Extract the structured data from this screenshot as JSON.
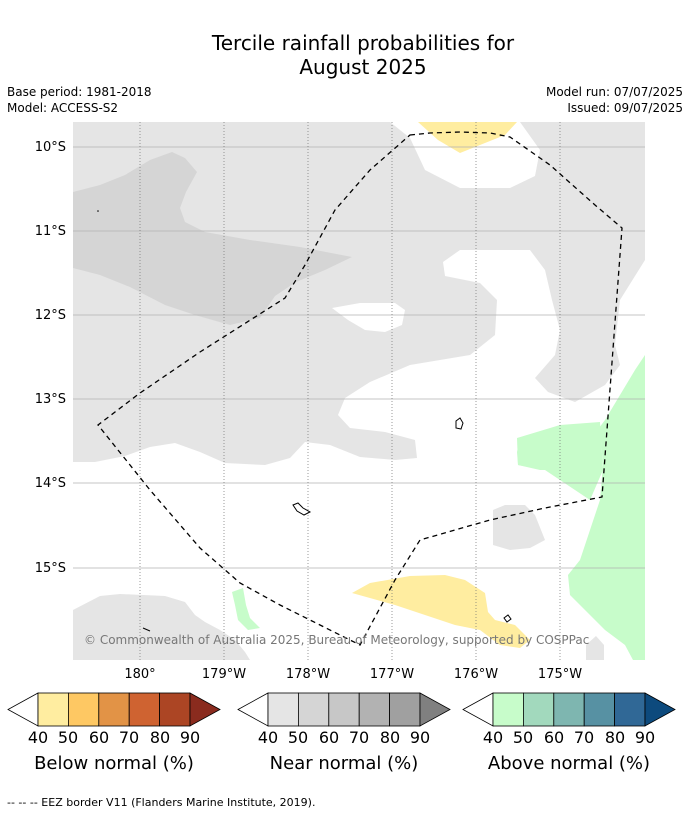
{
  "title_line1": "Tercile rainfall probabilities for",
  "title_line2": "August 2025",
  "meta": {
    "base_period": "Base period: 1981-2018",
    "model": "Model: ACCESS-S2",
    "model_run": "Model run: 07/07/2025",
    "issued": "Issued: 09/07/2025"
  },
  "map": {
    "lat_labels": [
      "10°S",
      "11°S",
      "12°S",
      "13°S",
      "14°S",
      "15°S"
    ],
    "lon_labels": [
      "180°",
      "179°W",
      "178°W",
      "177°W",
      "176°W",
      "175°W"
    ],
    "copyright": "© Commonwealth of Australia 2025, Bureau of Meteorology, supported by COSPPac",
    "colors": {
      "near_normal_40": "#e5e5e5",
      "near_normal_50": "#d5d5d5",
      "below_normal_40": "#ffeda0",
      "above_normal_40": "#c7fcca"
    }
  },
  "colorbars": {
    "ticks": [
      "40",
      "50",
      "60",
      "70",
      "80",
      "90"
    ],
    "below": {
      "label": "Below normal (%)",
      "colors": [
        "#ffeda0",
        "#fec863",
        "#e29346",
        "#cf6331",
        "#ac4524",
        "#8a2b1e"
      ]
    },
    "near": {
      "label": "Near normal (%)",
      "colors": [
        "#e5e5e5",
        "#d5d5d5",
        "#c7c7c7",
        "#b2b2b2",
        "#a0a0a0",
        "#808080"
      ]
    },
    "above": {
      "label": "Above normal (%)",
      "colors": [
        "#c7fcca",
        "#a2d9bd",
        "#7eb6b0",
        "#5791a3",
        "#306896",
        "#0d4a7d"
      ]
    }
  },
  "footer": "-- -- -- EEZ border V11 (Flanders Marine Institute, 2019)."
}
